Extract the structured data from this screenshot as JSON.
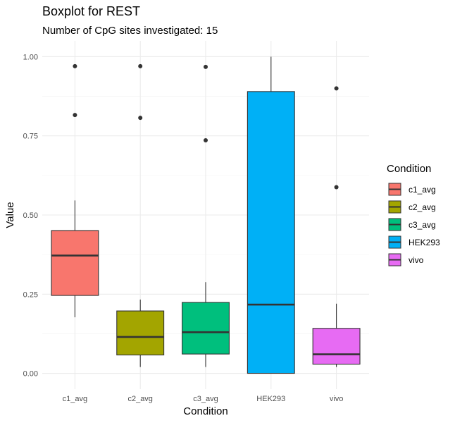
{
  "chart_data": {
    "type": "boxplot",
    "title": "Boxplot for REST",
    "subtitle": "Number of CpG sites investigated: 15",
    "xlabel": "Condition",
    "ylabel": "Value",
    "ylim": [
      -0.05,
      1.05
    ],
    "yticks": [
      0.0,
      0.25,
      0.5,
      0.75,
      1.0
    ],
    "ytick_labels": [
      "0.00",
      "0.25",
      "0.50",
      "0.75",
      "1.00"
    ],
    "grid": true,
    "legend": {
      "title": "Condition",
      "position": "right"
    },
    "categories": [
      "c1_avg",
      "c2_avg",
      "c3_avg",
      "HEK293",
      "vivo"
    ],
    "boxes": [
      {
        "name": "c1_avg",
        "color": "#F8766D",
        "whisker_low": 0.177,
        "q1": 0.246,
        "median": 0.372,
        "q3": 0.451,
        "whisker_high": 0.546,
        "outliers": [
          0.816,
          0.97
        ]
      },
      {
        "name": "c2_avg",
        "color": "#A3A500",
        "whisker_low": 0.02,
        "q1": 0.058,
        "median": 0.115,
        "q3": 0.197,
        "whisker_high": 0.233,
        "outliers": [
          0.807,
          0.97
        ]
      },
      {
        "name": "c3_avg",
        "color": "#00BF7D",
        "whisker_low": 0.02,
        "q1": 0.061,
        "median": 0.13,
        "q3": 0.224,
        "whisker_high": 0.288,
        "outliers": [
          0.736,
          0.968
        ]
      },
      {
        "name": "HEK293",
        "color": "#00B0F6",
        "whisker_low": 0.0,
        "q1": 0.0,
        "median": 0.217,
        "q3": 0.89,
        "whisker_high": 1.0,
        "outliers": []
      },
      {
        "name": "vivo",
        "color": "#E76BF3",
        "whisker_low": 0.02,
        "q1": 0.029,
        "median": 0.06,
        "q3": 0.142,
        "whisker_high": 0.22,
        "outliers": [
          0.588,
          0.9
        ]
      }
    ]
  }
}
